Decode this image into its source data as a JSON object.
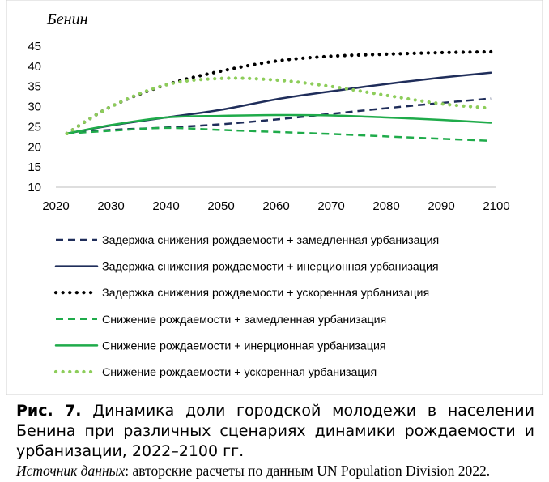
{
  "chart_data": {
    "type": "line",
    "title": "Бенин",
    "xlabel": "",
    "ylabel": "",
    "xlim": [
      2020,
      2100
    ],
    "ylim": [
      10,
      45
    ],
    "xticks": [
      2020,
      2030,
      2040,
      2050,
      2060,
      2070,
      2080,
      2090,
      2100
    ],
    "yticks": [
      10,
      15,
      20,
      25,
      30,
      35,
      40,
      45
    ],
    "grid": false,
    "legend_position": "bottom",
    "x": [
      2022,
      2030,
      2040,
      2050,
      2060,
      2070,
      2080,
      2090,
      2099
    ],
    "series": [
      {
        "name": "Задержка снижения рождаемости + замедленная урбанизация",
        "color": "#1f2d5a",
        "dash": "dashed",
        "values": [
          23.3,
          24.2,
          24.8,
          25.6,
          26.8,
          28.2,
          29.6,
          30.9,
          32.0
        ]
      },
      {
        "name": "Задержка снижения рождаемости + инерционная урбанизация",
        "color": "#1f2d5a",
        "dash": "solid",
        "values": [
          23.3,
          25.3,
          27.3,
          29.2,
          31.8,
          33.8,
          35.6,
          37.2,
          38.4
        ]
      },
      {
        "name": "Задержка снижения рождаемости + ускоренная урбанизация",
        "color": "#000000",
        "dash": "dotted",
        "values": [
          23.3,
          30.0,
          35.4,
          38.8,
          41.3,
          42.5,
          43.0,
          43.4,
          43.6
        ]
      },
      {
        "name": "Снижение рождаемости + замедленная урбанизация",
        "color": "#1fab4a",
        "dash": "dashed",
        "values": [
          23.3,
          24.0,
          24.7,
          24.2,
          23.7,
          23.2,
          22.6,
          22.0,
          21.5
        ]
      },
      {
        "name": "Снижение рождаемости + инерционная урбанизация",
        "color": "#1fab4a",
        "dash": "solid",
        "values": [
          23.3,
          25.4,
          27.3,
          27.7,
          27.9,
          27.8,
          27.3,
          26.7,
          26.0
        ]
      },
      {
        "name": "Снижение рождаемости + ускоренная урбанизация",
        "color": "#8dcd5a",
        "dash": "dotted",
        "values": [
          23.3,
          30.0,
          35.4,
          37.0,
          36.6,
          35.0,
          32.8,
          30.7,
          29.6
        ]
      }
    ]
  },
  "caption": {
    "label": "Рис. 7.",
    "text": "Динамика доли городской молодежи в населении Бенина при различных сценариях динамики рождаемости и урбанизации, 2022–2100 гг."
  },
  "source": {
    "label": "Источник данных",
    "text": ": авторские расчеты по данным UN Population Division 2022."
  }
}
